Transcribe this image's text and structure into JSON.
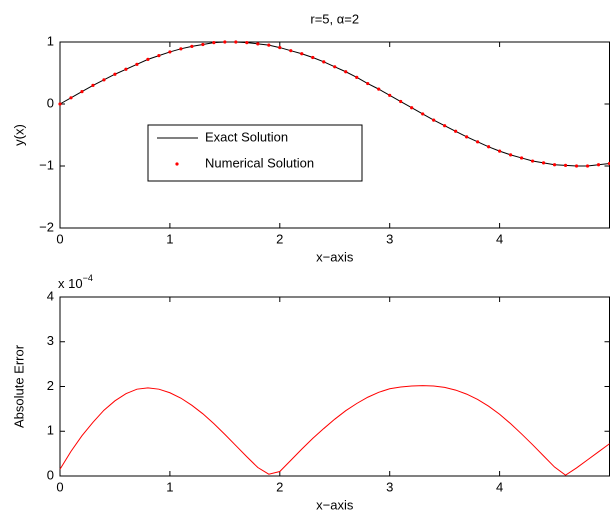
{
  "chart_data": [
    {
      "type": "line",
      "title": "r=5, α=2",
      "xlabel": "x−axis",
      "ylabel": "y(x)",
      "x": [
        0,
        0.1,
        0.2,
        0.3,
        0.4,
        0.5,
        0.6,
        0.7,
        0.8,
        0.9,
        1,
        1.1,
        1.2,
        1.3,
        1.4,
        1.5,
        1.6,
        1.7,
        1.8,
        1.9,
        2,
        2.1,
        2.2,
        2.3,
        2.4,
        2.5,
        2.6,
        2.7,
        2.8,
        2.9,
        3,
        3.1,
        3.2,
        3.3,
        3.4,
        3.5,
        3.6,
        3.7,
        3.8,
        3.9,
        4,
        4.1,
        4.2,
        4.3,
        4.4,
        4.5,
        4.6,
        4.7,
        4.8,
        4.9,
        5
      ],
      "series": [
        {
          "name": "Exact Solution",
          "color": "#000000",
          "mode": "line",
          "values": [
            0,
            0.1,
            0.2,
            0.3,
            0.39,
            0.48,
            0.56,
            0.64,
            0.72,
            0.78,
            0.84,
            0.89,
            0.93,
            0.96,
            0.99,
            1,
            1,
            0.99,
            0.97,
            0.95,
            0.91,
            0.86,
            0.81,
            0.75,
            0.68,
            0.6,
            0.52,
            0.43,
            0.33,
            0.24,
            0.14,
            0.04,
            -0.06,
            -0.16,
            -0.26,
            -0.35,
            -0.44,
            -0.53,
            -0.61,
            -0.69,
            -0.76,
            -0.82,
            -0.87,
            -0.92,
            -0.95,
            -0.98,
            -0.99,
            -1,
            -1,
            -0.98,
            -0.96
          ]
        },
        {
          "name": "Numerical Solution",
          "color": "#ff0000",
          "mode": "markers",
          "values": [
            0,
            0.1,
            0.2,
            0.3,
            0.39,
            0.48,
            0.56,
            0.64,
            0.72,
            0.78,
            0.84,
            0.89,
            0.93,
            0.96,
            0.99,
            1,
            1,
            0.99,
            0.97,
            0.95,
            0.91,
            0.86,
            0.81,
            0.75,
            0.68,
            0.6,
            0.52,
            0.43,
            0.33,
            0.24,
            0.14,
            0.04,
            -0.06,
            -0.16,
            -0.26,
            -0.35,
            -0.44,
            -0.53,
            -0.61,
            -0.69,
            -0.76,
            -0.82,
            -0.87,
            -0.92,
            -0.95,
            -0.98,
            -0.99,
            -1,
            -1,
            -0.98,
            -0.96
          ]
        }
      ],
      "xlim": [
        0,
        5
      ],
      "ylim": [
        -2,
        1
      ],
      "xticks": [
        0,
        1,
        2,
        3,
        4,
        5
      ],
      "yticks": [
        {
          "value": -2,
          "label": "−2"
        },
        {
          "value": -1,
          "label": "−1"
        },
        0,
        1
      ],
      "grid": false,
      "legend": "center-left"
    },
    {
      "type": "line",
      "xlabel": "x−axis",
      "ylabel": "Absolute Error",
      "scale_label": "x 10",
      "scale_exponent": "−4",
      "x": [
        0,
        0.1,
        0.2,
        0.3,
        0.4,
        0.5,
        0.6,
        0.7,
        0.8,
        0.9,
        1,
        1.1,
        1.2,
        1.3,
        1.4,
        1.5,
        1.6,
        1.7,
        1.8,
        1.9,
        2,
        2.1,
        2.2,
        2.3,
        2.4,
        2.5,
        2.6,
        2.7,
        2.8,
        2.9,
        3,
        3.1,
        3.2,
        3.3,
        3.4,
        3.5,
        3.6,
        3.7,
        3.8,
        3.9,
        4,
        4.1,
        4.2,
        4.3,
        4.4,
        4.5,
        4.6,
        4.7,
        4.8,
        4.9,
        5
      ],
      "series": [
        {
          "color": "#ff0000",
          "mode": "line",
          "values": [
            0.15,
            0.55,
            0.9,
            1.2,
            1.47,
            1.68,
            1.84,
            1.94,
            1.97,
            1.94,
            1.86,
            1.74,
            1.58,
            1.39,
            1.17,
            0.93,
            0.68,
            0.43,
            0.19,
            0.04,
            0.1,
            0.35,
            0.6,
            0.84,
            1.06,
            1.27,
            1.46,
            1.62,
            1.76,
            1.87,
            1.95,
            1.99,
            2.01,
            2.02,
            2.01,
            1.98,
            1.92,
            1.83,
            1.71,
            1.56,
            1.38,
            1.17,
            0.94,
            0.7,
            0.45,
            0.2,
            0.02,
            0.18,
            0.36,
            0.54,
            0.72
          ]
        }
      ],
      "xlim": [
        0,
        5
      ],
      "ylim": [
        0,
        4
      ],
      "xticks": [
        0,
        1,
        2,
        3,
        4,
        5
      ],
      "yticks": [
        0,
        1,
        2,
        3,
        4
      ],
      "grid": false
    }
  ]
}
